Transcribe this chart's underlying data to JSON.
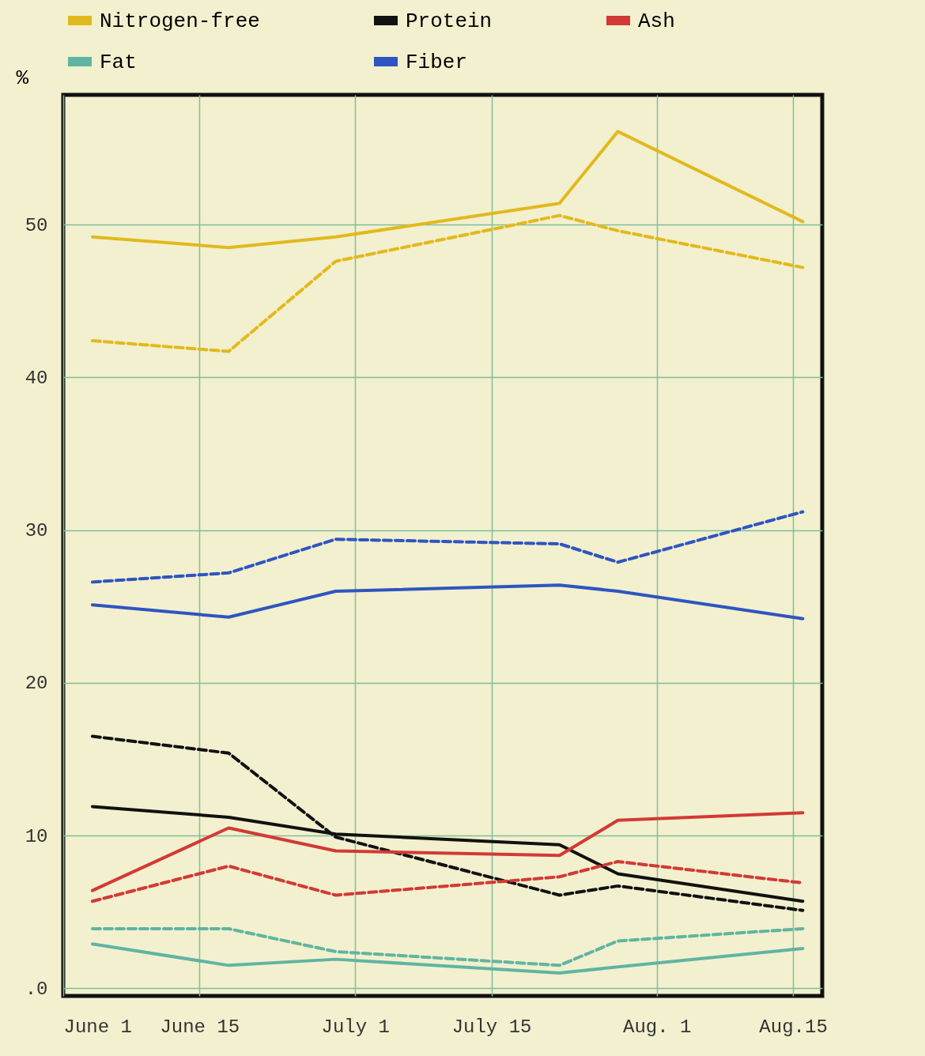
{
  "chart_data": {
    "type": "line",
    "ylabel": "%",
    "legend": "top",
    "grid": true,
    "x": [
      "--06-04",
      "--06-18",
      "--06-29",
      "--07-22",
      "--07-28",
      "--08-16"
    ],
    "xlim": [
      "--06-01",
      "--08-18"
    ],
    "xticks": [
      {
        "value": "--06-01",
        "label": "June 1"
      },
      {
        "value": "--06-15",
        "label": "June 15"
      },
      {
        "value": "--07-01",
        "label": "July 1"
      },
      {
        "value": "--07-15",
        "label": "July 15"
      },
      {
        "value": "--08-01",
        "label": "Aug. 1"
      },
      {
        "value": "--08-15",
        "label": "Aug.15"
      }
    ],
    "ylim": [
      -0.5,
      58.5
    ],
    "yticks": [
      {
        "value": 0,
        "label": ".0"
      },
      10,
      20,
      30,
      40,
      50
    ],
    "series": [
      {
        "name": "Nitrogen-free",
        "color": "#e2b91c",
        "line_style": "solid",
        "values": [
          49.2,
          48.5,
          49.2,
          51.4,
          56.1,
          50.2
        ]
      },
      {
        "color": "#e2b91c",
        "line_style": "dashed",
        "values": [
          42.4,
          41.7,
          47.6,
          50.6,
          49.6,
          47.2
        ]
      },
      {
        "name": "Protein",
        "color": "#111111",
        "line_style": "solid",
        "values": [
          11.9,
          11.2,
          10.1,
          9.4,
          7.5,
          5.7
        ]
      },
      {
        "color": "#111111",
        "line_style": "dashed",
        "values": [
          16.5,
          15.4,
          9.9,
          6.1,
          6.7,
          5.1
        ]
      },
      {
        "name": "Ash",
        "color": "#d23a35",
        "line_style": "solid",
        "values": [
          6.4,
          10.5,
          9.0,
          8.7,
          11.0,
          11.5
        ]
      },
      {
        "color": "#d23a35",
        "line_style": "dashed",
        "values": [
          5.7,
          8.0,
          6.1,
          7.3,
          8.3,
          6.9
        ]
      },
      {
        "name": "Fat",
        "color": "#5fb5a0",
        "line_style": "solid",
        "values": [
          2.9,
          1.5,
          1.9,
          1.0,
          1.4,
          2.6
        ]
      },
      {
        "color": "#5fb5a0",
        "line_style": "dashed",
        "values": [
          3.9,
          3.9,
          2.4,
          1.5,
          3.1,
          3.9
        ]
      },
      {
        "name": "Fiber",
        "color": "#2f55c0",
        "line_style": "solid",
        "values": [
          25.1,
          24.3,
          26.0,
          26.4,
          26.0,
          24.2
        ]
      },
      {
        "color": "#2f55c0",
        "line_style": "dashed",
        "values": [
          26.6,
          27.2,
          29.4,
          29.1,
          27.9,
          31.2
        ]
      }
    ]
  }
}
